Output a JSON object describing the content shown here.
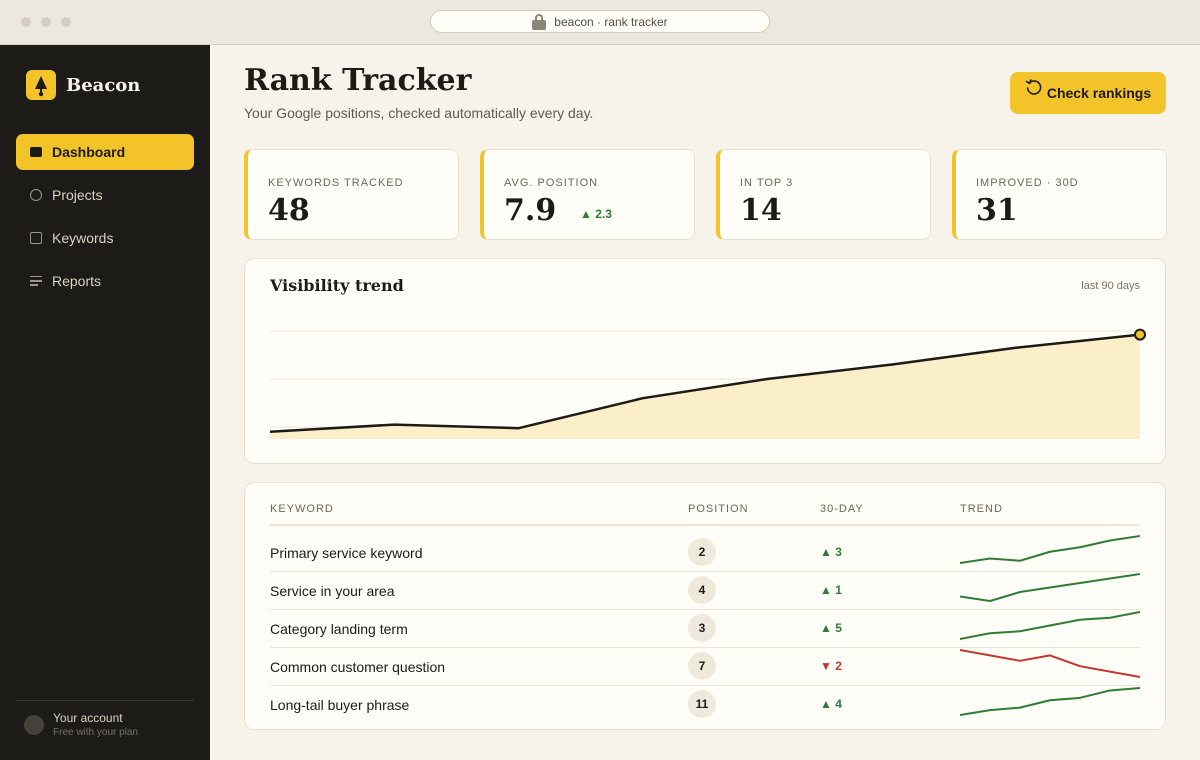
{
  "browser": {
    "url": "beacon · rank tracker"
  },
  "sidebar": {
    "brand": "Beacon",
    "items": [
      {
        "label": "Dashboard",
        "icon": "dashboard-icon",
        "active": true
      },
      {
        "label": "Projects",
        "icon": "circle-icon"
      },
      {
        "label": "Keywords",
        "icon": "square-icon"
      },
      {
        "label": "Reports",
        "icon": "list-icon"
      }
    ],
    "account": {
      "name": "Your account",
      "plan": "Free with your plan"
    }
  },
  "header": {
    "title": "Rank Tracker",
    "subtitle": "Your Google positions, checked automatically every day.",
    "cta": "Check rankings"
  },
  "kpis": [
    {
      "label": "KEYWORDS TRACKED",
      "value": "48"
    },
    {
      "label": "AVG. POSITION",
      "value": "7.9",
      "delta": "▲ 2.3"
    },
    {
      "label": "IN TOP 3",
      "value": "14"
    },
    {
      "label": "IMPROVED · 30D",
      "value": "31"
    }
  ],
  "trend": {
    "title": "Visibility trend",
    "note": "last 90 days",
    "colors": {
      "line": "#1c1b17",
      "fill": "#fbefc9",
      "marker": "#f2c42a"
    },
    "chart_data": {
      "type": "area",
      "title": "Visibility trend",
      "x": [
        1,
        2,
        3,
        4,
        5,
        6,
        7,
        8
      ],
      "values": [
        6,
        12,
        9,
        34,
        50,
        62,
        76,
        87
      ],
      "ylim": [
        0,
        100
      ],
      "grid": true
    }
  },
  "table": {
    "headers": {
      "keyword": "KEYWORD",
      "position": "POSITION",
      "delta": "30-DAY",
      "trend": "TREND"
    },
    "rows": [
      {
        "keyword": "Primary service keyword",
        "position": "2",
        "delta": "▲ 3",
        "dir": "up",
        "spark": [
          1,
          3,
          2,
          6,
          8,
          11,
          13
        ]
      },
      {
        "keyword": "Service in your area",
        "position": "4",
        "delta": "▲ 1",
        "dir": "up",
        "spark": [
          3,
          2,
          4,
          5,
          6,
          7,
          8
        ]
      },
      {
        "keyword": "Category landing term",
        "position": "3",
        "delta": "▲ 5",
        "dir": "up",
        "spark": [
          1,
          4,
          5,
          8,
          11,
          12,
          15
        ]
      },
      {
        "keyword": "Common customer question",
        "position": "7",
        "delta": "▼ 2",
        "dir": "down",
        "spark": [
          8,
          7,
          6,
          7,
          5,
          4,
          3
        ]
      },
      {
        "keyword": "Long-tail buyer phrase",
        "position": "11",
        "delta": "▲ 4",
        "dir": "up",
        "spark": [
          1,
          3,
          4,
          7,
          8,
          11,
          12
        ]
      }
    ],
    "colors": {
      "up": "#2f7d32",
      "down": "#c0392b"
    }
  }
}
